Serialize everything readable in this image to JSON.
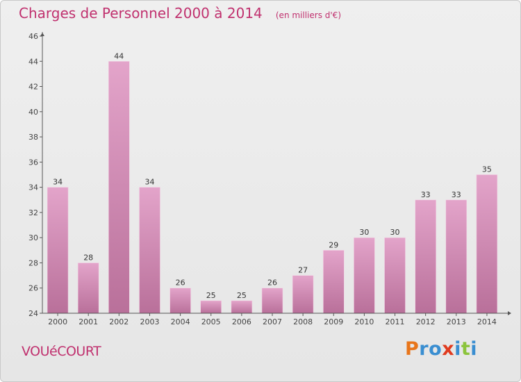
{
  "header": {
    "title": "Charges de Personnel 2000 à 2014",
    "subtitle": "(en milliers d'€)"
  },
  "footer": {
    "commune": "VOUéCOURT",
    "brand": "Proxiti",
    "brand_colors": [
      "#e8751a",
      "#3a8ed1",
      "#3a8ed1",
      "#e03b1f",
      "#3a8ed1",
      "#8cc43c",
      "#3a8ed1"
    ]
  },
  "colors": {
    "title": "#c0306e",
    "bar_top": "#e3a4ca",
    "bar_bottom": "#b9709a",
    "axis": "#555555"
  },
  "chart_data": {
    "type": "bar",
    "title": "Charges de Personnel 2000 à 2014",
    "subtitle": "(en milliers d'€)",
    "categories": [
      "2000",
      "2001",
      "2002",
      "2003",
      "2004",
      "2005",
      "2006",
      "2007",
      "2008",
      "2009",
      "2010",
      "2011",
      "2012",
      "2013",
      "2014"
    ],
    "values": [
      34,
      28,
      44,
      34,
      26,
      25,
      25,
      26,
      27,
      29,
      30,
      30,
      33,
      33,
      35
    ],
    "ylim": [
      24,
      46
    ],
    "yticks": [
      24,
      26,
      28,
      30,
      32,
      34,
      36,
      38,
      40,
      42,
      44,
      46
    ],
    "grid": false,
    "xlabel": "",
    "ylabel": ""
  }
}
